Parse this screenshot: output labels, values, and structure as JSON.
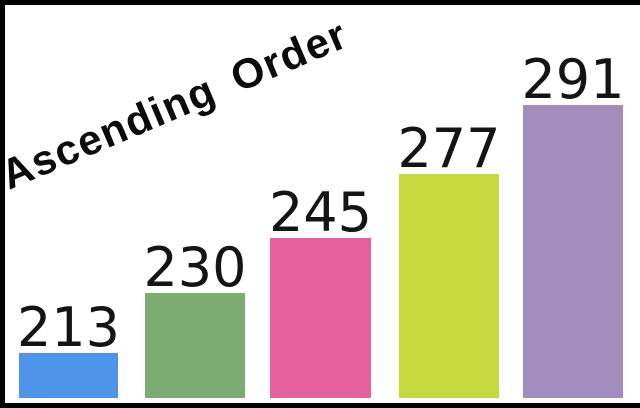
{
  "title": {
    "text": "Ascending Order"
  },
  "frame": {
    "color": "#000000",
    "background": "#ffffff"
  },
  "text_color": "#141414",
  "chart_data": {
    "type": "bar",
    "title": "Ascending Order",
    "values": [
      213,
      230,
      245,
      277,
      291
    ],
    "data_labels": [
      "213",
      "230",
      "245",
      "277",
      "291"
    ],
    "bar_colors": [
      "#4e94e8",
      "#7dac72",
      "#e7609e",
      "#c6d93f",
      "#a28dbc"
    ],
    "order": "ascending",
    "xlabel": "",
    "ylabel": "",
    "axes_visible": false,
    "grid": false,
    "legend": false,
    "data_label_position": "above-bar"
  }
}
